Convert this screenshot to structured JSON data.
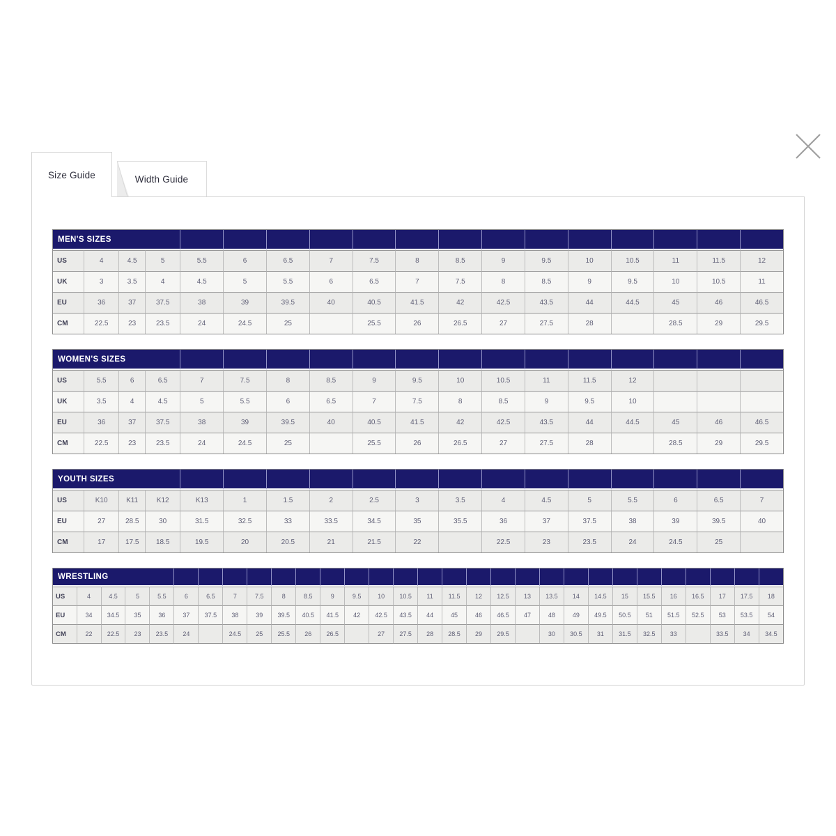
{
  "tabs": [
    {
      "label": "Size Guide",
      "active": true
    },
    {
      "label": "Width Guide",
      "active": false
    }
  ],
  "icons": {
    "close": "×"
  },
  "colors": {
    "header_bg": "#1b196b",
    "header_separator": "#9393c7",
    "row_shaded": "#ebebe9",
    "row_light": "#f6f6f4",
    "grid_border": "#8c8c8c",
    "cell_text": "#5f5f76",
    "close_icon": "#a0a0a0"
  },
  "tables": [
    {
      "id": "mens",
      "title": "MEN'S SIZES",
      "title_colspan": 4,
      "compact": false,
      "rows": [
        {
          "label": "US",
          "values": [
            "4",
            "4.5",
            "5",
            "5.5",
            "6",
            "6.5",
            "7",
            "7.5",
            "8",
            "8.5",
            "9",
            "9.5",
            "10",
            "10.5",
            "11",
            "11.5",
            "12"
          ]
        },
        {
          "label": "UK",
          "values": [
            "3",
            "3.5",
            "4",
            "4.5",
            "5",
            "5.5",
            "6",
            "6.5",
            "7",
            "7.5",
            "8",
            "8.5",
            "9",
            "9.5",
            "10",
            "10.5",
            "11"
          ]
        },
        {
          "label": "EU",
          "values": [
            "36",
            "37",
            "37.5",
            "38",
            "39",
            "39.5",
            "40",
            "40.5",
            "41.5",
            "42",
            "42.5",
            "43.5",
            "44",
            "44.5",
            "45",
            "46",
            "46.5"
          ]
        },
        {
          "label": "CM",
          "values": [
            "22.5",
            "23",
            "23.5",
            "24",
            "24.5",
            "25",
            "",
            "25.5",
            "26",
            "26.5",
            "27",
            "27.5",
            "28",
            "",
            "28.5",
            "29",
            "29.5"
          ]
        }
      ]
    },
    {
      "id": "womens",
      "title": "WOMEN'S SIZES",
      "title_colspan": 4,
      "compact": false,
      "rows": [
        {
          "label": "US",
          "values": [
            "5.5",
            "6",
            "6.5",
            "7",
            "7.5",
            "8",
            "8.5",
            "9",
            "9.5",
            "10",
            "10.5",
            "11",
            "11.5",
            "12",
            "",
            "",
            ""
          ]
        },
        {
          "label": "UK",
          "values": [
            "3.5",
            "4",
            "4.5",
            "5",
            "5.5",
            "6",
            "6.5",
            "7",
            "7.5",
            "8",
            "8.5",
            "9",
            "9.5",
            "10",
            "",
            "",
            ""
          ]
        },
        {
          "label": "EU",
          "values": [
            "36",
            "37",
            "37.5",
            "38",
            "39",
            "39.5",
            "40",
            "40.5",
            "41.5",
            "42",
            "42.5",
            "43.5",
            "44",
            "44.5",
            "45",
            "46",
            "46.5"
          ]
        },
        {
          "label": "CM",
          "values": [
            "22.5",
            "23",
            "23.5",
            "24",
            "24.5",
            "25",
            "",
            "25.5",
            "26",
            "26.5",
            "27",
            "27.5",
            "28",
            "",
            "28.5",
            "29",
            "29.5"
          ]
        }
      ]
    },
    {
      "id": "youth",
      "title": "YOUTH SIZES",
      "title_colspan": 4,
      "compact": false,
      "rows": [
        {
          "label": "US",
          "values": [
            "K10",
            "K11",
            "K12",
            "K13",
            "1",
            "1.5",
            "2",
            "2.5",
            "3",
            "3.5",
            "4",
            "4.5",
            "5",
            "5.5",
            "6",
            "6.5",
            "7"
          ]
        },
        {
          "label": "EU",
          "values": [
            "27",
            "28.5",
            "30",
            "31.5",
            "32.5",
            "33",
            "33.5",
            "34.5",
            "35",
            "35.5",
            "36",
            "37",
            "37.5",
            "38",
            "39",
            "39.5",
            "40"
          ]
        },
        {
          "label": "CM",
          "values": [
            "17",
            "17.5",
            "18.5",
            "19.5",
            "20",
            "20.5",
            "21",
            "21.5",
            "22",
            "",
            "22.5",
            "23",
            "23.5",
            "24",
            "24.5",
            "25",
            ""
          ]
        }
      ]
    },
    {
      "id": "wrestling",
      "title": "WRESTLING",
      "title_colspan": 5,
      "compact": true,
      "rows": [
        {
          "label": "US",
          "values": [
            "4",
            "4.5",
            "5",
            "5.5",
            "6",
            "6.5",
            "7",
            "7.5",
            "8",
            "8.5",
            "9",
            "9.5",
            "10",
            "10.5",
            "11",
            "11.5",
            "12",
            "12.5",
            "13",
            "13.5",
            "14",
            "14.5",
            "15",
            "15.5",
            "16",
            "16.5",
            "17",
            "17.5",
            "18"
          ]
        },
        {
          "label": "EU",
          "values": [
            "34",
            "34.5",
            "35",
            "36",
            "37",
            "37.5",
            "38",
            "39",
            "39.5",
            "40.5",
            "41.5",
            "42",
            "42.5",
            "43.5",
            "44",
            "45",
            "46",
            "46.5",
            "47",
            "48",
            "49",
            "49.5",
            "50.5",
            "51",
            "51.5",
            "52.5",
            "53",
            "53.5",
            "54"
          ]
        },
        {
          "label": "CM",
          "values": [
            "22",
            "22.5",
            "23",
            "23.5",
            "24",
            "",
            "24.5",
            "25",
            "25.5",
            "26",
            "26.5",
            "",
            "27",
            "27.5",
            "28",
            "28.5",
            "29",
            "29.5",
            "",
            "30",
            "30.5",
            "31",
            "31.5",
            "32.5",
            "33",
            "",
            "33.5",
            "34",
            "34.5"
          ]
        }
      ]
    }
  ]
}
